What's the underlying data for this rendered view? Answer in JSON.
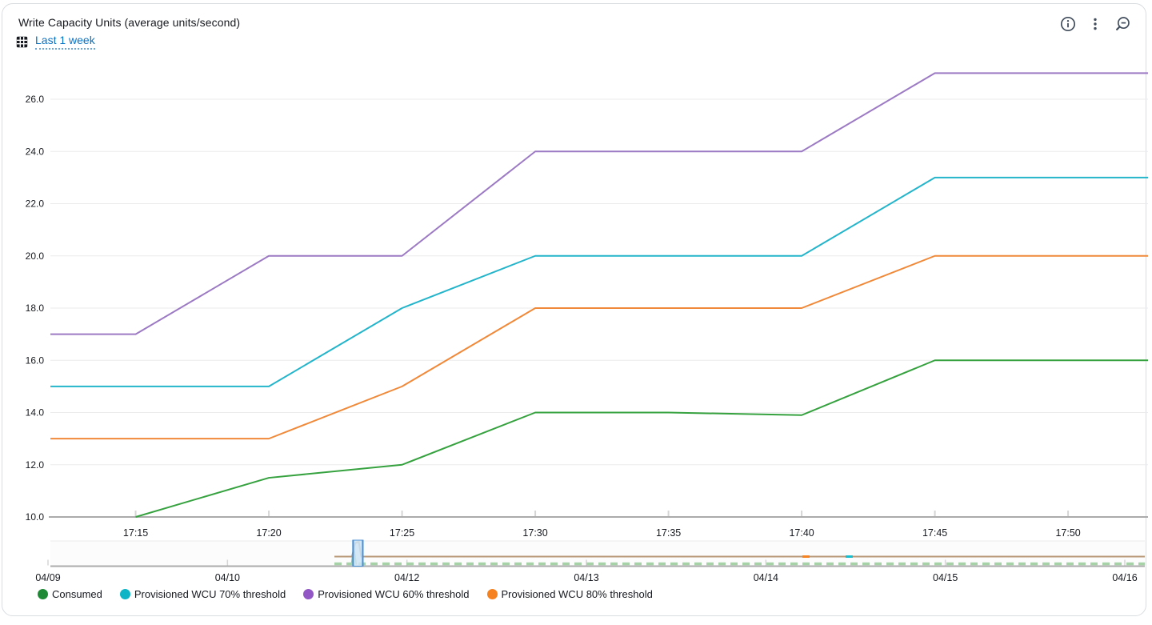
{
  "header": {
    "title": "Write Capacity Units (average units/second)",
    "time_range_label": "Last 1 week",
    "icons": [
      "time-range-grid-icon",
      "info-icon",
      "kebab-menu-icon",
      "zoom-out-icon"
    ]
  },
  "colors": {
    "link": "#0872c4",
    "text": "#16191f",
    "icon": "#414d5c",
    "axis_line": "#ababab",
    "gridline": "#ebebeb",
    "tick": "#d5d5d5",
    "selection_fill": "#cde3f5",
    "selection_border": "#4b91d6"
  },
  "chart_data": [
    {
      "name": "main-chart",
      "type": "line",
      "title": "Write Capacity Units (average units/second)",
      "xlabel": "",
      "ylabel": "",
      "grid": "horizontal",
      "legend_position": "bottom",
      "x_unit": "time of day (minutes after 17:00)",
      "x_domain_minutes": [
        11.8,
        53
      ],
      "ylim": [
        10,
        27.6
      ],
      "y_ticks": [
        {
          "value": 26,
          "label": "26.0"
        },
        {
          "value": 24,
          "label": "24.0"
        },
        {
          "value": 22,
          "label": "22.0"
        },
        {
          "value": 20,
          "label": "20.0"
        },
        {
          "value": 18,
          "label": "18.0"
        },
        {
          "value": 16,
          "label": "16.0"
        },
        {
          "value": 14,
          "label": "14.0"
        },
        {
          "value": 12,
          "label": "12.0"
        },
        {
          "value": 10,
          "label": "10.0"
        }
      ],
      "x_ticks": [
        {
          "minute": 15,
          "label": "17:15"
        },
        {
          "minute": 20,
          "label": "17:20"
        },
        {
          "minute": 25,
          "label": "17:25"
        },
        {
          "minute": 30,
          "label": "17:30"
        },
        {
          "minute": 35,
          "label": "17:35"
        },
        {
          "minute": 40,
          "label": "17:40"
        },
        {
          "minute": 45,
          "label": "17:45"
        },
        {
          "minute": 50,
          "label": "17:50"
        }
      ],
      "series": [
        {
          "name": "Consumed",
          "color": "#36a23f",
          "points": [
            [
              15,
              10
            ],
            [
              20,
              11.5
            ],
            [
              25,
              12
            ],
            [
              30,
              14
            ],
            [
              35,
              14
            ],
            [
              40,
              13.9
            ],
            [
              45,
              16
            ],
            [
              53,
              16
            ]
          ]
        },
        {
          "name": "Provisioned WCU 70% threshold",
          "color": "#25b5cb",
          "points": [
            [
              11.8,
              15
            ],
            [
              20,
              15
            ],
            [
              25,
              18
            ],
            [
              30,
              20
            ],
            [
              40,
              20
            ],
            [
              45,
              23
            ],
            [
              53,
              23
            ]
          ]
        },
        {
          "name": "Provisioned WCU 60% threshold",
          "color": "#9c7ac4",
          "points": [
            [
              11.8,
              17
            ],
            [
              15,
              17
            ],
            [
              20,
              20
            ],
            [
              25,
              20
            ],
            [
              30,
              24
            ],
            [
              40,
              24
            ],
            [
              45,
              27
            ],
            [
              53,
              27
            ]
          ]
        },
        {
          "name": "Provisioned WCU 80% threshold",
          "color": "#f08a3a",
          "points": [
            [
              11.8,
              13
            ],
            [
              20,
              13
            ],
            [
              25,
              15
            ],
            [
              30,
              18
            ],
            [
              40,
              18
            ],
            [
              45,
              20
            ],
            [
              53,
              20
            ]
          ]
        }
      ]
    },
    {
      "name": "timeline-overview",
      "type": "line",
      "note": "brush minimap for full week range",
      "x_labels": [
        "04/09",
        "04/10",
        "04/12",
        "04/13",
        "04/14",
        "04/15",
        "04/16"
      ],
      "selection_fraction": 0.281,
      "series": [
        {
          "name": "provisioned-combined",
          "color": "#b99877",
          "style": "solid",
          "start_fraction": 0.2595,
          "spike_fraction": 0.2807,
          "blips": [
            {
              "color": "#f5821f",
              "fraction": 0.69
            },
            {
              "color": "#17becf",
              "fraction": 0.7295
            }
          ]
        },
        {
          "name": "consumed-overview",
          "color": "#a7d2a7",
          "style": "dashed",
          "start_fraction": 0.2595,
          "spike_fraction": 0.278
        }
      ]
    }
  ],
  "legend": {
    "items": [
      {
        "label": "Consumed",
        "color": "#1f8a35"
      },
      {
        "label": "Provisioned WCU 70% threshold",
        "color": "#0db4c6"
      },
      {
        "label": "Provisioned WCU 60% threshold",
        "color": "#9257c5"
      },
      {
        "label": "Provisioned WCU 80% threshold",
        "color": "#f5821f"
      }
    ]
  }
}
